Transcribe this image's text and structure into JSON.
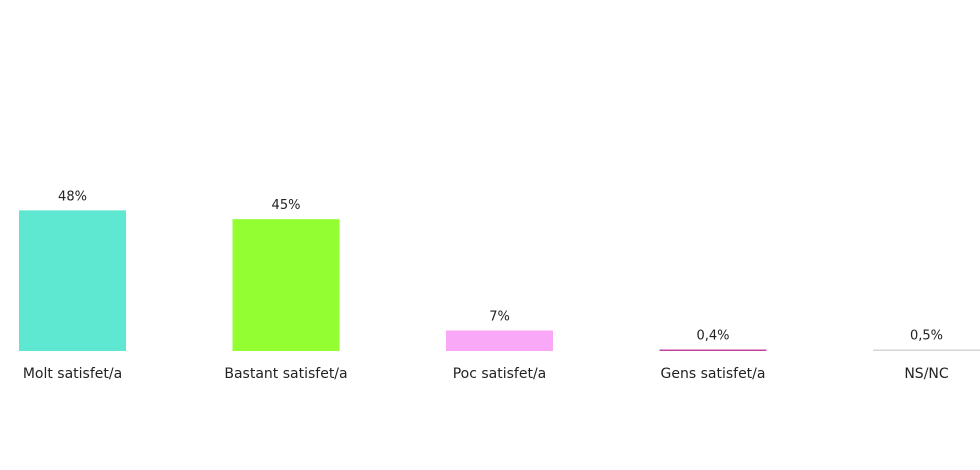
{
  "chart_data": {
    "type": "bar",
    "categories": [
      "Molt satisfet/a",
      "Bastant satisfet/a",
      "Poc satisfet/a",
      "Gens satisfet/a",
      "NS/NC"
    ],
    "values": [
      48,
      45,
      7,
      0.4,
      0.5
    ],
    "data_labels": [
      "48%",
      "45%",
      "7%",
      "0,4%",
      "0,5%"
    ],
    "colors": [
      "#5ee8d2",
      "#93ff33",
      "#f9a8f7",
      "#c0439a",
      "#d6d6d6"
    ],
    "title": "",
    "xlabel": "",
    "ylabel": "",
    "ylim": [
      0,
      100
    ],
    "grid": false,
    "legend": "none"
  }
}
